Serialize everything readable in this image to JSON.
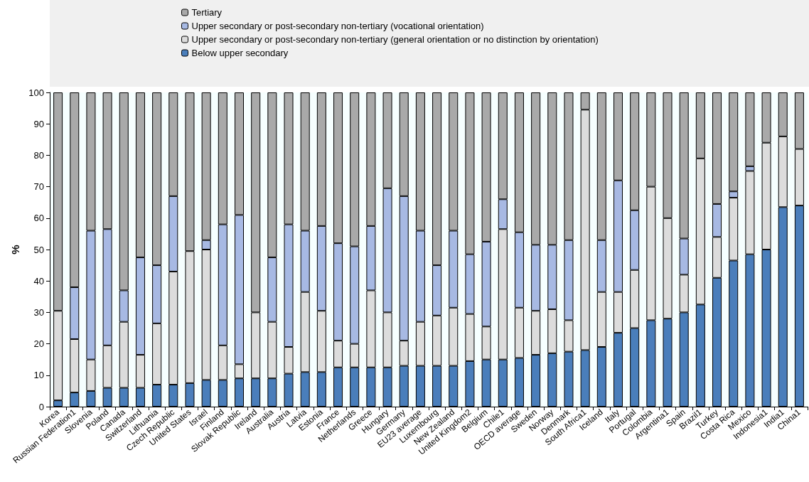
{
  "chart_data": {
    "type": "bar",
    "stacked": true,
    "ylabel": "%",
    "categories": [
      "Korea",
      "Russian Federation1",
      "Slovenia",
      "Poland",
      "Canada",
      "Switzerland",
      "Lithuania",
      "Czech Republic",
      "United States",
      "Israel",
      "Finland",
      "Slovak Republic",
      "Ireland",
      "Australia",
      "Austria",
      "Latvia",
      "Estonia",
      "France",
      "Netherlands",
      "Greece",
      "Hungary",
      "Germany",
      "EU23 average",
      "Luxembourg",
      "New Zealand",
      "United Kingdom2",
      "Belgium",
      "Chile1",
      "OECD average",
      "Sweden",
      "Norway",
      "Denmark",
      "South Africa1",
      "Iceland",
      "Italy",
      "Portugal",
      "Colombia",
      "Argentina1",
      "Spain",
      "Brazil1",
      "Turkey",
      "Costa Rica",
      "Mexico",
      "Indonesia1",
      "India1",
      "China1"
    ],
    "series": [
      {
        "name": "Below upper secondary",
        "color": "#4a7ebb",
        "values": [
          2,
          4.5,
          5,
          6,
          6,
          6,
          7,
          7,
          7.5,
          8.5,
          8.5,
          9,
          9,
          9,
          10.5,
          11,
          11,
          12.5,
          12.5,
          12.5,
          12.5,
          13,
          13,
          13,
          13,
          14.5,
          15,
          15,
          15.5,
          16.5,
          17,
          17.5,
          18,
          19,
          23.5,
          25,
          27.5,
          28,
          30,
          32.5,
          41,
          46.5,
          48.5,
          50,
          63.5,
          64
        ]
      },
      {
        "name": "Upper secondary or post-secondary non-tertiary (general orientation or no distinction by orientation)",
        "color": "#dcdcdc",
        "values": [
          28.5,
          17,
          10,
          13.5,
          21,
          10.5,
          19.5,
          36,
          42,
          41.5,
          11,
          4.5,
          21,
          18,
          8.5,
          25.5,
          19.5,
          8.5,
          7.5,
          24.5,
          17.5,
          8,
          14,
          16,
          18.5,
          15,
          10.5,
          41.5,
          16,
          14,
          14,
          10,
          76.5,
          17.5,
          13,
          18.5,
          42.5,
          32,
          12,
          46.5,
          13,
          20,
          26.5,
          34,
          22.5,
          18
        ]
      },
      {
        "name": "Upper secondary or post-secondary non-tertiary (vocational orientation)",
        "color": "#a7b9e3",
        "values": [
          0,
          16.5,
          41,
          37,
          10,
          31,
          18.5,
          24,
          0,
          3,
          38.5,
          47.5,
          0,
          20.5,
          39,
          19.5,
          27,
          31,
          31,
          20.5,
          39.5,
          46,
          29,
          16,
          24.5,
          19,
          27,
          9.5,
          24,
          21,
          20.5,
          25.5,
          0,
          16.5,
          35.5,
          19,
          0,
          0,
          11.5,
          0,
          10.5,
          2,
          1.5,
          0,
          0,
          0
        ]
      },
      {
        "name": "Tertiary",
        "color": "#a9a9a9",
        "values": [
          69.5,
          62,
          44,
          43.5,
          63,
          52.5,
          55,
          33,
          50.5,
          47,
          42,
          39,
          70,
          52.5,
          42,
          44,
          42.5,
          48,
          49,
          42.5,
          30.5,
          33,
          44,
          55,
          44,
          51.5,
          47.5,
          34,
          44.5,
          48.5,
          48.5,
          47,
          5.5,
          47,
          28,
          37.5,
          30,
          40,
          46.5,
          21,
          35.5,
          31.5,
          23.5,
          16,
          14,
          18
        ]
      }
    ],
    "ylim": [
      0,
      100
    ],
    "yticks": [
      0,
      10,
      20,
      30,
      40,
      50,
      60,
      70,
      80,
      90,
      100
    ],
    "grid": false,
    "legend": "top"
  }
}
